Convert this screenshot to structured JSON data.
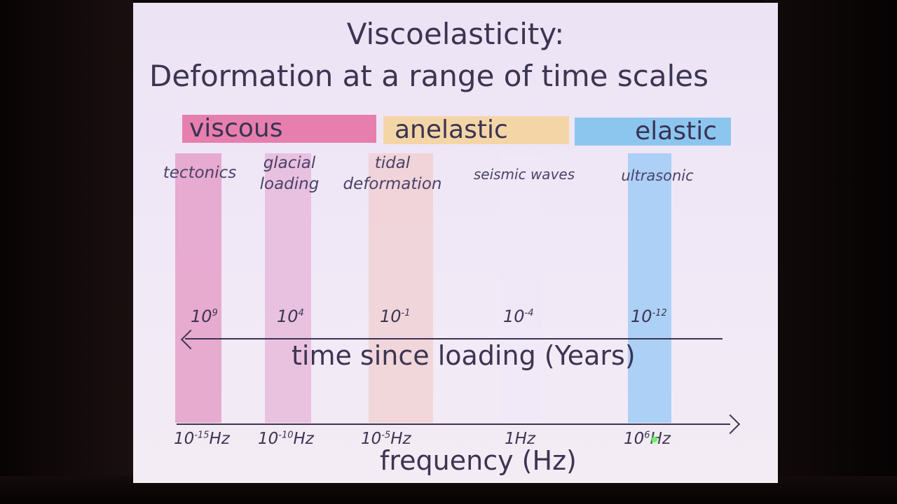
{
  "slide": {
    "title_line1": "Viscoelasticity:",
    "title_line2": "Deformation at a range of time scales",
    "bands": {
      "viscous": "viscous",
      "anelastic": "anelastic",
      "elastic": "elastic"
    },
    "processes": {
      "tectonics": "tectonics",
      "glacial_line1": "glacial",
      "glacial_line2": "loading",
      "tidal_line1": "tidal",
      "tidal_line2": "deformation",
      "seismic": "seismic waves",
      "ultrasonic": "ultrasonic"
    },
    "time_axis": {
      "label": "time since loading (Years)",
      "ticks": [
        {
          "base": "10",
          "exp": "9"
        },
        {
          "base": "10",
          "exp": "4"
        },
        {
          "base": "10",
          "exp": "-1"
        },
        {
          "base": "10",
          "exp": "-4"
        },
        {
          "base": "10",
          "exp": "-12"
        }
      ]
    },
    "frequency_axis": {
      "label": "frequency (Hz)",
      "ticks": [
        {
          "base": "10",
          "exp": "-15",
          "unit": "Hz"
        },
        {
          "base": "10",
          "exp": "-10",
          "unit": "Hz"
        },
        {
          "base": "10",
          "exp": "-5",
          "unit": "Hz"
        },
        {
          "base": "1",
          "exp": "",
          "unit": "Hz"
        },
        {
          "base": "10",
          "exp": "6",
          "unit": "Hz"
        }
      ]
    },
    "colors": {
      "viscous": "#e77fae",
      "anelastic": "#f4d6a6",
      "elastic": "#8cc6ef"
    }
  }
}
